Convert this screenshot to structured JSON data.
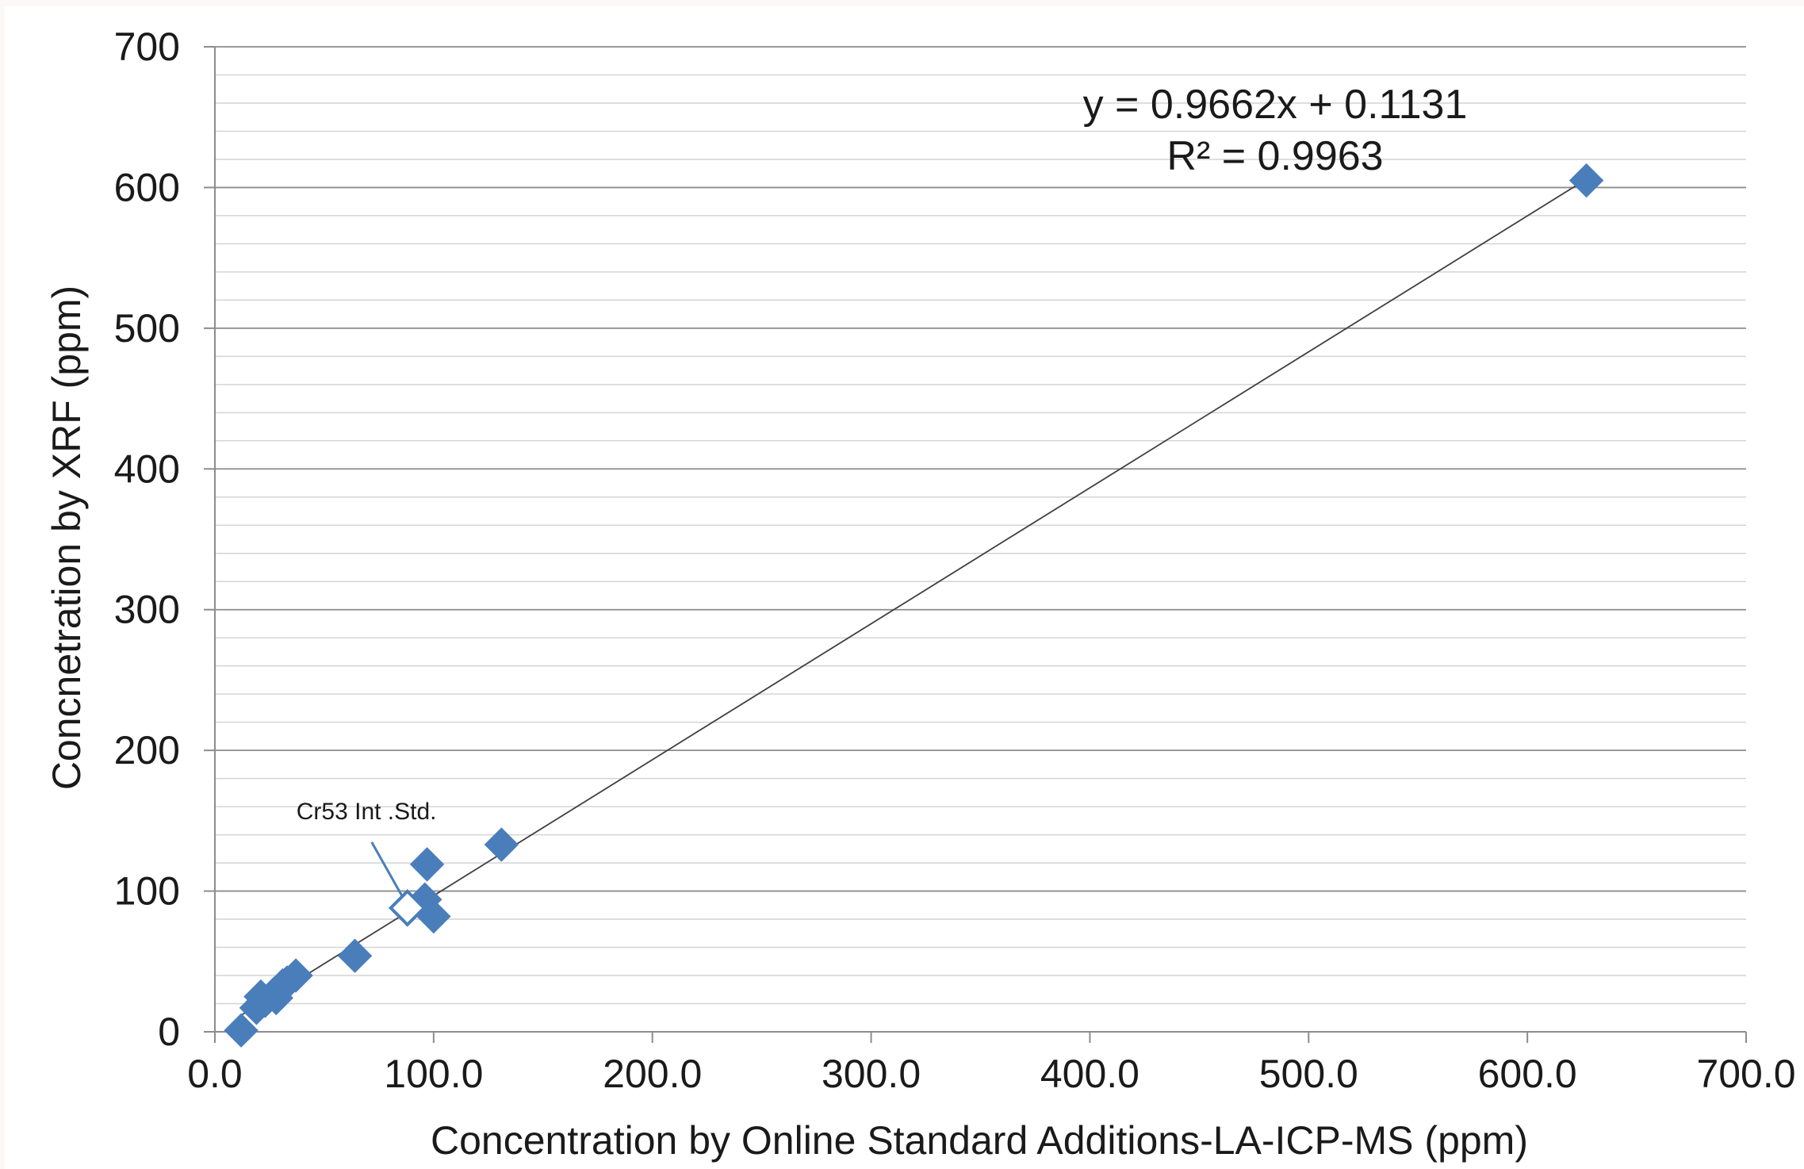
{
  "chart_data": {
    "type": "scatter",
    "title": "",
    "xlabel": "Concentration by Online Standard Additions-LA-ICP-MS (ppm)",
    "ylabel": "Concnetration by XRF (ppm)",
    "xlim": [
      0,
      700
    ],
    "ylim": [
      0,
      700
    ],
    "x_ticks": [
      0,
      100,
      200,
      300,
      400,
      500,
      600,
      700
    ],
    "x_tick_labels": [
      "0.0",
      "100.0",
      "200.0",
      "300.0",
      "400.0",
      "500.0",
      "600.0",
      "700.0"
    ],
    "y_ticks": [
      0,
      100,
      200,
      300,
      400,
      500,
      600,
      700
    ],
    "y_tick_labels": [
      "0",
      "100",
      "200",
      "300",
      "400",
      "500",
      "600",
      "700"
    ],
    "y_minor_step": 20,
    "grid": "horizontal major and minor",
    "legend": "none",
    "marker_color": "#4a7ebb",
    "series": [
      {
        "marker": "diamond-filled",
        "points": [
          {
            "x": 12,
            "y": 1
          },
          {
            "x": 19,
            "y": 17
          },
          {
            "x": 21,
            "y": 25
          },
          {
            "x": 23,
            "y": 22
          },
          {
            "x": 27,
            "y": 27
          },
          {
            "x": 28,
            "y": 24
          },
          {
            "x": 31,
            "y": 33
          },
          {
            "x": 33,
            "y": 35
          },
          {
            "x": 37,
            "y": 40
          },
          {
            "x": 64,
            "y": 54
          },
          {
            "x": 96,
            "y": 94
          },
          {
            "x": 97,
            "y": 119
          },
          {
            "x": 100,
            "y": 82
          },
          {
            "x": 131,
            "y": 133
          },
          {
            "x": 627,
            "y": 605
          }
        ]
      },
      {
        "marker": "diamond-open",
        "points": [
          {
            "x": 88,
            "y": 88
          }
        ]
      }
    ],
    "trendline": {
      "slope": 0.9662,
      "intercept": 0.1131,
      "x_range": [
        12,
        627
      ],
      "color": "#404040",
      "equation_label": "y = 0.9662x + 0.1131",
      "r2_label": "R² = 0.9963"
    },
    "annotations": [
      {
        "text": "Cr53 Int .Std.",
        "points_to": {
          "x": 88,
          "y": 88
        }
      }
    ]
  }
}
